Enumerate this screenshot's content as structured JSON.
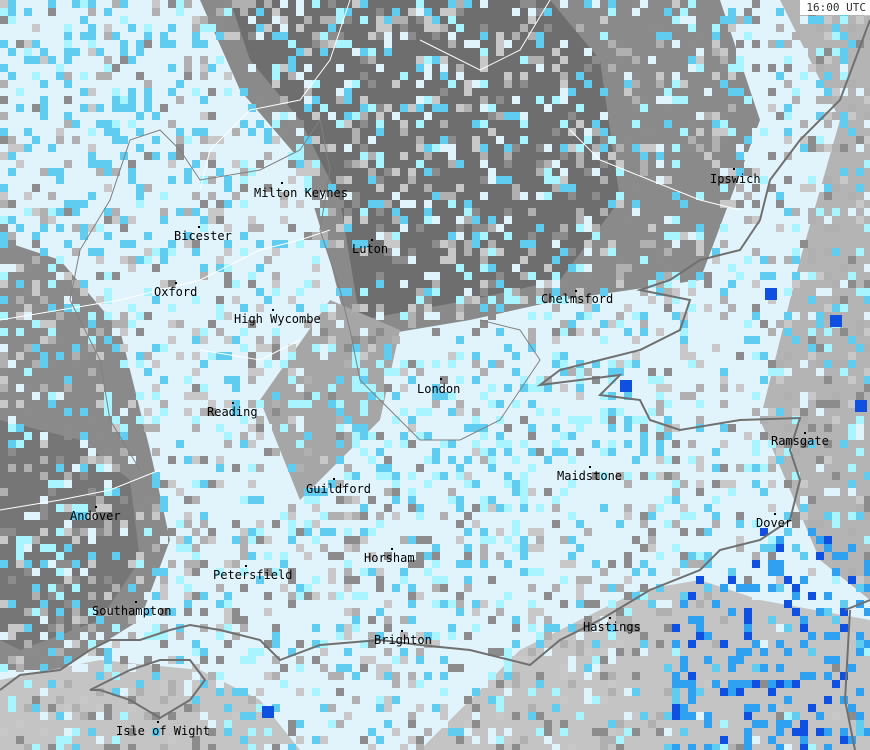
{
  "timestamp": "16:00 UTC",
  "colors": {
    "land_no_rain": "#e2f4fb",
    "cloud_dark": "#6e6e6e",
    "cloud_mid": "#8c8c8c",
    "cloud_light": "#b0b0b0",
    "sea": "#c8c8c8",
    "rain_very_light": "#a8f4ff",
    "rain_light": "#60ccf0",
    "rain_moderate": "#30a0f0",
    "rain_heavy": "#1050e0",
    "coastline": "#707070",
    "borders": "#ffffff"
  },
  "cities": [
    {
      "name": "Milton Keynes"
    },
    {
      "name": "Bicester"
    },
    {
      "name": "Luton"
    },
    {
      "name": "Ipswich"
    },
    {
      "name": "Oxford"
    },
    {
      "name": "High Wycombe"
    },
    {
      "name": "Chelmsford"
    },
    {
      "name": "London"
    },
    {
      "name": "Reading"
    },
    {
      "name": "Ramsgate"
    },
    {
      "name": "Guildford"
    },
    {
      "name": "Maidstone"
    },
    {
      "name": "Andover"
    },
    {
      "name": "Dover"
    },
    {
      "name": "Horsham"
    },
    {
      "name": "Petersfield"
    },
    {
      "name": "Southampton"
    },
    {
      "name": "Hastings"
    },
    {
      "name": "Brighton"
    },
    {
      "name": "Isle of Wight"
    }
  ]
}
